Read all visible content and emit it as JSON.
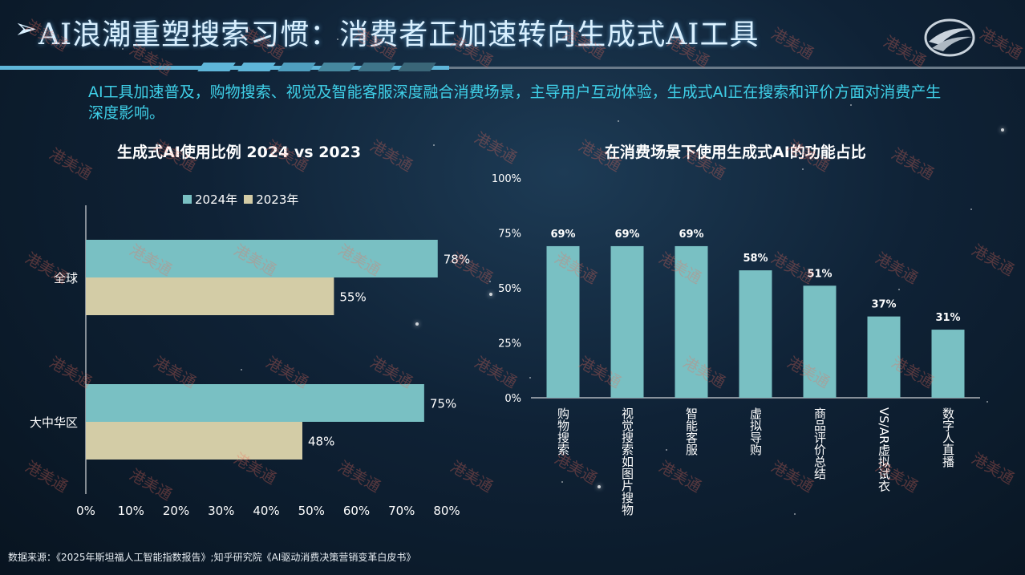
{
  "header": {
    "arrow": "➢",
    "title": "AI浪潮重塑搜索习惯：消费者正加速转向生成式AI工具",
    "subtitle": "AI工具加速普及，购物搜索、视觉及智能客服深度融合消费场景，主导用户互动体验，生成式AI正在搜索和评价方面对消费产生深度影响。"
  },
  "source": "数据来源：《2025年斯坦福人工智能指数报告》;知乎研究院《AI驱动消费决策营销变革白皮书》",
  "watermark": "港美通",
  "colors": {
    "teal": "#79c0c3",
    "beige": "#d3cca6",
    "accent_text": "#3fd0e8"
  },
  "chart_data": [
    {
      "type": "bar",
      "orientation": "horizontal",
      "title": "生成式AI使用比例 2024 vs 2023",
      "categories": [
        "全球",
        "大中华区"
      ],
      "series": [
        {
          "name": "2024年",
          "values": [
            78,
            75
          ],
          "labels": [
            "78%",
            "75%"
          ]
        },
        {
          "name": "2023年",
          "values": [
            55,
            48
          ],
          "labels": [
            "55%",
            "48%"
          ]
        }
      ],
      "xlim": [
        0,
        80
      ],
      "xticks": [
        "0%",
        "10%",
        "20%",
        "30%",
        "40%",
        "50%",
        "60%",
        "70%",
        "80%"
      ],
      "legend": "top-center"
    },
    {
      "type": "bar",
      "title": "在消费场景下使用生成式AI的功能占比",
      "categories": [
        "购物搜索",
        "视觉搜索如图片搜物",
        "智能客服",
        "虚拟导购",
        "商品评价总结",
        "VS/AR虚拟试衣",
        "数字人直播"
      ],
      "values": [
        69,
        69,
        69,
        58,
        51,
        37,
        31
      ],
      "labels": [
        "69%",
        "69%",
        "69%",
        "58%",
        "51%",
        "37%",
        "31%"
      ],
      "ylim": [
        0,
        100
      ],
      "yticks": [
        "0%",
        "25%",
        "50%",
        "75%",
        "100%"
      ]
    }
  ]
}
